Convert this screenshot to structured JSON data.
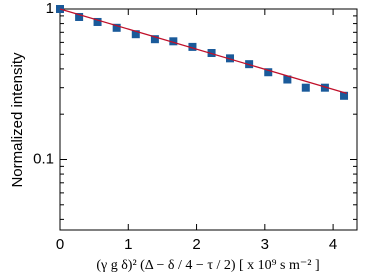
{
  "chart_data": {
    "type": "scatter",
    "ylabel": "Normalized intensity",
    "xlabel": "(γ g δ)² (Δ − δ / 4 − τ / 2) [ x 10⁹ s m⁻² ]",
    "xlim": [
      0,
      4.35
    ],
    "xticks": [
      0,
      1,
      2,
      3,
      4
    ],
    "ylim": [
      0.034,
      1
    ],
    "yticks": [
      0.1,
      1
    ],
    "yminorticks": [
      0.04,
      0.05,
      0.06,
      0.07,
      0.08,
      0.09,
      0.2,
      0.3,
      0.4,
      0.5,
      0.6,
      0.7,
      0.8,
      0.9
    ],
    "yscale": "log",
    "series": [
      {
        "color": "#1a5a9a",
        "marker": "square",
        "x": [
          0,
          0.28,
          0.55,
          0.83,
          1.11,
          1.39,
          1.66,
          1.94,
          2.22,
          2.49,
          2.77,
          3.05,
          3.33,
          3.6,
          3.88,
          4.16
        ],
        "values": [
          1.0,
          0.885,
          0.82,
          0.75,
          0.68,
          0.63,
          0.61,
          0.56,
          0.51,
          0.47,
          0.43,
          0.38,
          0.34,
          0.3,
          0.3,
          0.265
        ]
      },
      {
        "color": "#c0102a",
        "marker": "line",
        "x": [
          0,
          4.2
        ],
        "values": [
          1.0,
          0.275
        ]
      }
    ]
  }
}
